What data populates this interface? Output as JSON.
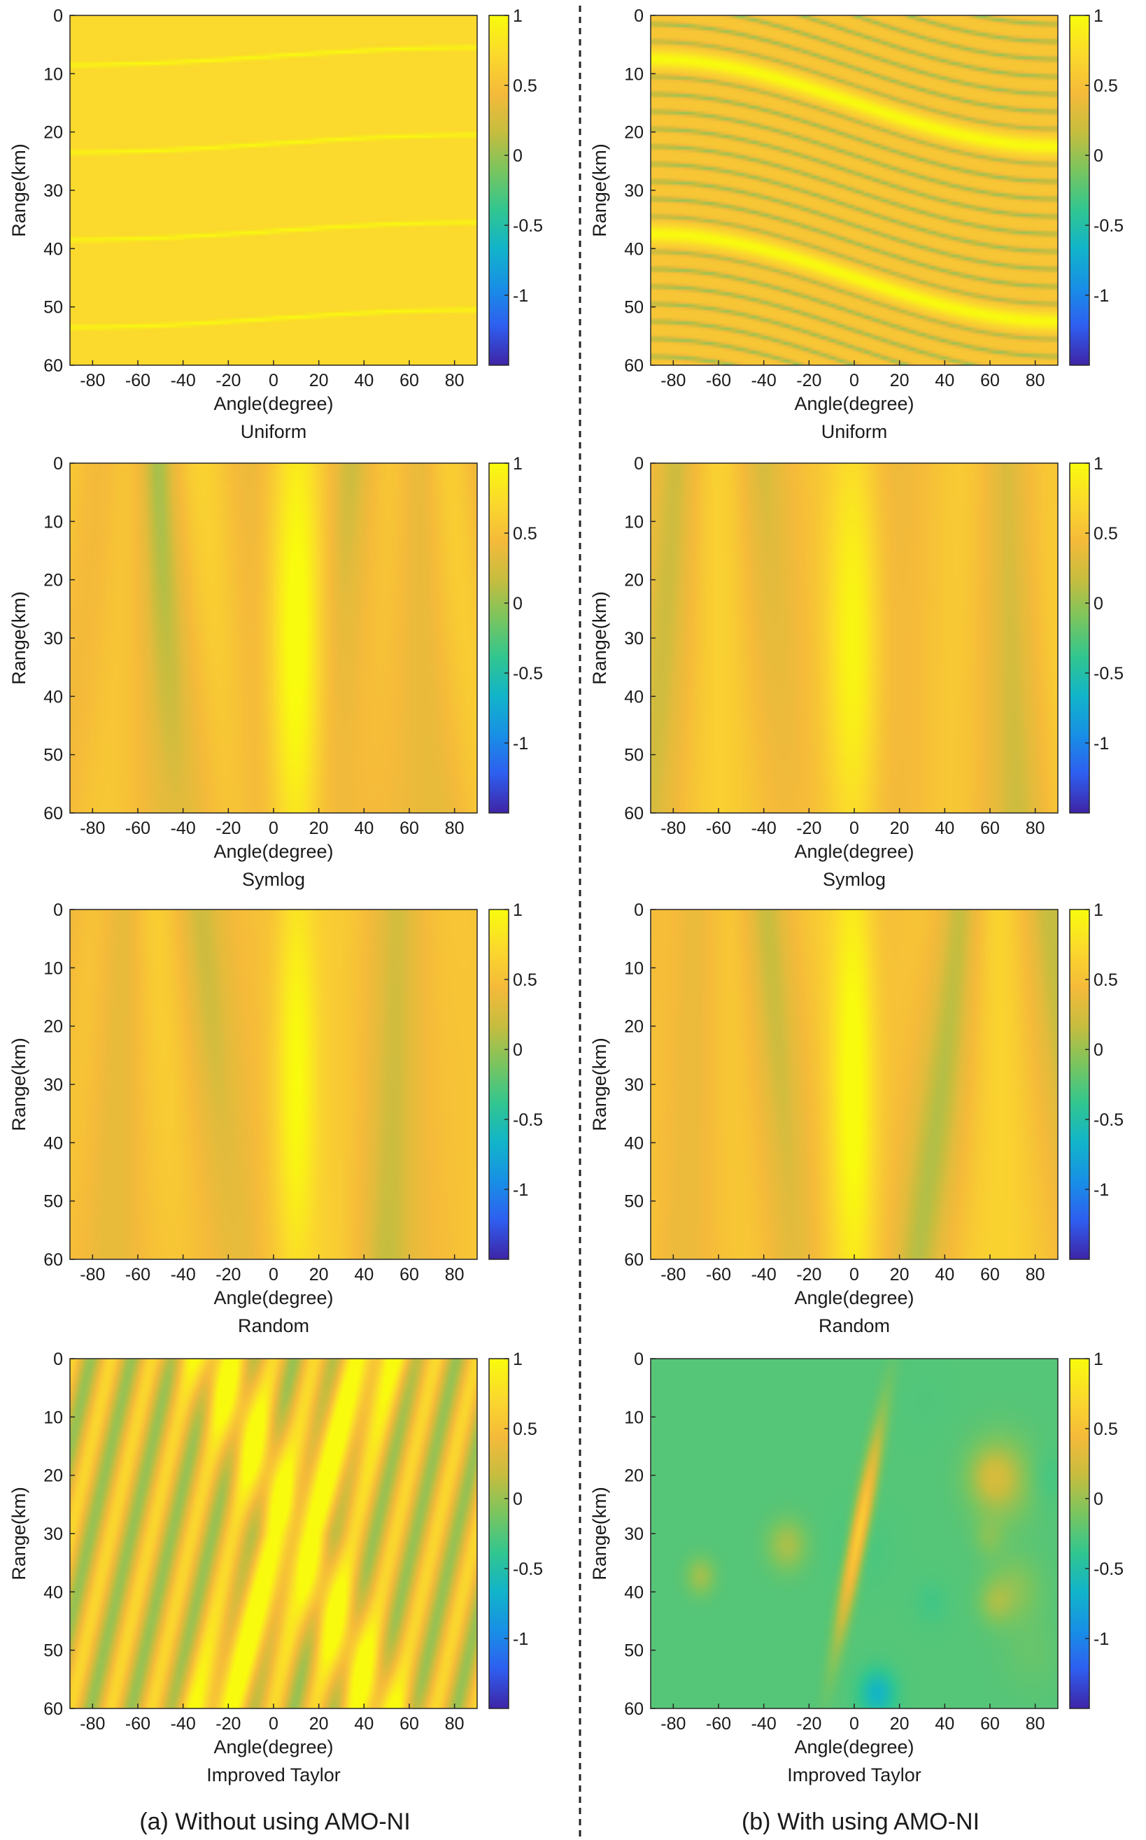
{
  "figure": {
    "captions": [
      "(a) Without using AMO-NI",
      "(b) With using AMO-NI"
    ]
  },
  "colormap": [
    "#3e26a8",
    "#2f5ff0",
    "#1890e6",
    "#12b4ca",
    "#31c690",
    "#79c560",
    "#c6bd3f",
    "#f5ba3a",
    "#fbd92d",
    "#f9fb0e"
  ],
  "chart_data": [
    {
      "id": "a1",
      "type": "heatmap",
      "column": "Without using AMO-NI",
      "subtitle": "Uniform",
      "xlabel": "Angle(degree)",
      "ylabel": "Range(km)",
      "xlim": [
        -90,
        90
      ],
      "ylim": [
        0,
        60
      ],
      "xticks": [
        -80,
        -60,
        -40,
        -20,
        0,
        20,
        40,
        60,
        80
      ],
      "yticks": [
        0,
        10,
        20,
        30,
        40,
        50,
        60
      ],
      "clim": [
        -1.5,
        1
      ],
      "cticks": [
        1,
        0.5,
        0,
        -0.5,
        -1
      ],
      "pattern": "uniform",
      "params": {
        "lines": 4,
        "spacing_km": 15,
        "offset_km": 7,
        "amplitude_km": 1.5,
        "background": 0.72,
        "peak": 1.0
      }
    },
    {
      "id": "b1",
      "type": "heatmap",
      "column": "With using AMO-NI",
      "subtitle": "Uniform",
      "xlabel": "Angle(degree)",
      "ylabel": "Range(km)",
      "xlim": [
        -90,
        90
      ],
      "ylim": [
        0,
        60
      ],
      "xticks": [
        -80,
        -60,
        -40,
        -20,
        0,
        20,
        40,
        60,
        80
      ],
      "yticks": [
        0,
        10,
        20,
        30,
        40,
        50,
        60
      ],
      "clim": [
        -1.5,
        1
      ],
      "cticks": [
        1,
        0.5,
        0,
        -0.5,
        -1
      ],
      "pattern": "uniform",
      "params": {
        "lines": 3,
        "spacing_km": 30,
        "offset_km": 15,
        "amplitude_km": 7.5,
        "stripes_per_period": 10,
        "background": 0.55,
        "peak": 1.0
      }
    },
    {
      "id": "a2",
      "type": "heatmap",
      "column": "Without using AMO-NI",
      "subtitle": "Symlog",
      "xlabel": "Angle(degree)",
      "ylabel": "Range(km)",
      "xlim": [
        -90,
        90
      ],
      "ylim": [
        0,
        60
      ],
      "xticks": [
        -80,
        -60,
        -40,
        -20,
        0,
        20,
        40,
        60,
        80
      ],
      "yticks": [
        0,
        10,
        20,
        30,
        40,
        50,
        60
      ],
      "clim": [
        -1.5,
        1
      ],
      "cticks": [
        1,
        0.5,
        0,
        -0.5,
        -1
      ],
      "pattern": "symlog",
      "params": {
        "focus_angle_deg": 10,
        "focus_range_km": 30,
        "seed": 3
      }
    },
    {
      "id": "b2",
      "type": "heatmap",
      "column": "With using AMO-NI",
      "subtitle": "Symlog",
      "xlabel": "Angle(degree)",
      "ylabel": "Range(km)",
      "xlim": [
        -90,
        90
      ],
      "ylim": [
        0,
        60
      ],
      "xticks": [
        -80,
        -60,
        -40,
        -20,
        0,
        20,
        40,
        60,
        80
      ],
      "yticks": [
        0,
        10,
        20,
        30,
        40,
        50,
        60
      ],
      "clim": [
        -1.5,
        1
      ],
      "cticks": [
        1,
        0.5,
        0,
        -0.5,
        -1
      ],
      "pattern": "symlog",
      "params": {
        "focus_angle_deg": 0,
        "focus_range_km": 30,
        "seed": 7
      }
    },
    {
      "id": "a3",
      "type": "heatmap",
      "column": "Without using AMO-NI",
      "subtitle": "Random",
      "xlabel": "Angle(degree)",
      "ylabel": "Range(km)",
      "xlim": [
        -90,
        90
      ],
      "ylim": [
        0,
        60
      ],
      "xticks": [
        -80,
        -60,
        -40,
        -20,
        0,
        20,
        40,
        60,
        80
      ],
      "yticks": [
        0,
        10,
        20,
        30,
        40,
        50,
        60
      ],
      "clim": [
        -1.5,
        1
      ],
      "cticks": [
        1,
        0.5,
        0,
        -0.5,
        -1
      ],
      "pattern": "random",
      "params": {
        "focus_angle_deg": 10,
        "focus_range_km": 30,
        "seed": 11
      }
    },
    {
      "id": "b3",
      "type": "heatmap",
      "column": "With using AMO-NI",
      "subtitle": "Random",
      "xlabel": "Angle(degree)",
      "ylabel": "Range(km)",
      "xlim": [
        -90,
        90
      ],
      "ylim": [
        0,
        60
      ],
      "xticks": [
        -80,
        -60,
        -40,
        -20,
        0,
        20,
        40,
        60,
        80
      ],
      "yticks": [
        0,
        10,
        20,
        30,
        40,
        50,
        60
      ],
      "clim": [
        -1.5,
        1
      ],
      "cticks": [
        1,
        0.5,
        0,
        -0.5,
        -1
      ],
      "pattern": "random",
      "params": {
        "focus_angle_deg": 0,
        "focus_range_km": 30,
        "seed": 19
      }
    },
    {
      "id": "a4",
      "type": "heatmap",
      "column": "Without using AMO-NI",
      "subtitle": "Improved Taylor",
      "xlabel": "Angle(degree)",
      "ylabel": "Range(km)",
      "xlim": [
        -90,
        90
      ],
      "ylim": [
        0,
        60
      ],
      "xticks": [
        -80,
        -60,
        -40,
        -20,
        0,
        20,
        40,
        60,
        80
      ],
      "yticks": [
        0,
        10,
        20,
        30,
        40,
        50,
        60
      ],
      "clim": [
        -1.5,
        1
      ],
      "cticks": [
        1,
        0.5,
        0,
        -0.5,
        -1
      ],
      "pattern": "taylor",
      "params": {
        "focus_angle_deg": 10,
        "focus_range_km": 30
      }
    },
    {
      "id": "b4",
      "type": "heatmap",
      "column": "With using AMO-NI",
      "subtitle": "Improved Taylor",
      "xlabel": "Angle(degree)",
      "ylabel": "Range(km)",
      "xlim": [
        -90,
        90
      ],
      "ylim": [
        0,
        60
      ],
      "xticks": [
        -80,
        -60,
        -40,
        -20,
        0,
        20,
        40,
        60,
        80
      ],
      "yticks": [
        0,
        10,
        20,
        30,
        40,
        50,
        60
      ],
      "clim": [
        -1.5,
        1
      ],
      "cticks": [
        1,
        0.5,
        0,
        -0.5,
        -1
      ],
      "pattern": "taylor_amo",
      "params": {
        "focus_angle_deg": 2,
        "focus_range_km": 30,
        "seed": 23
      }
    }
  ]
}
